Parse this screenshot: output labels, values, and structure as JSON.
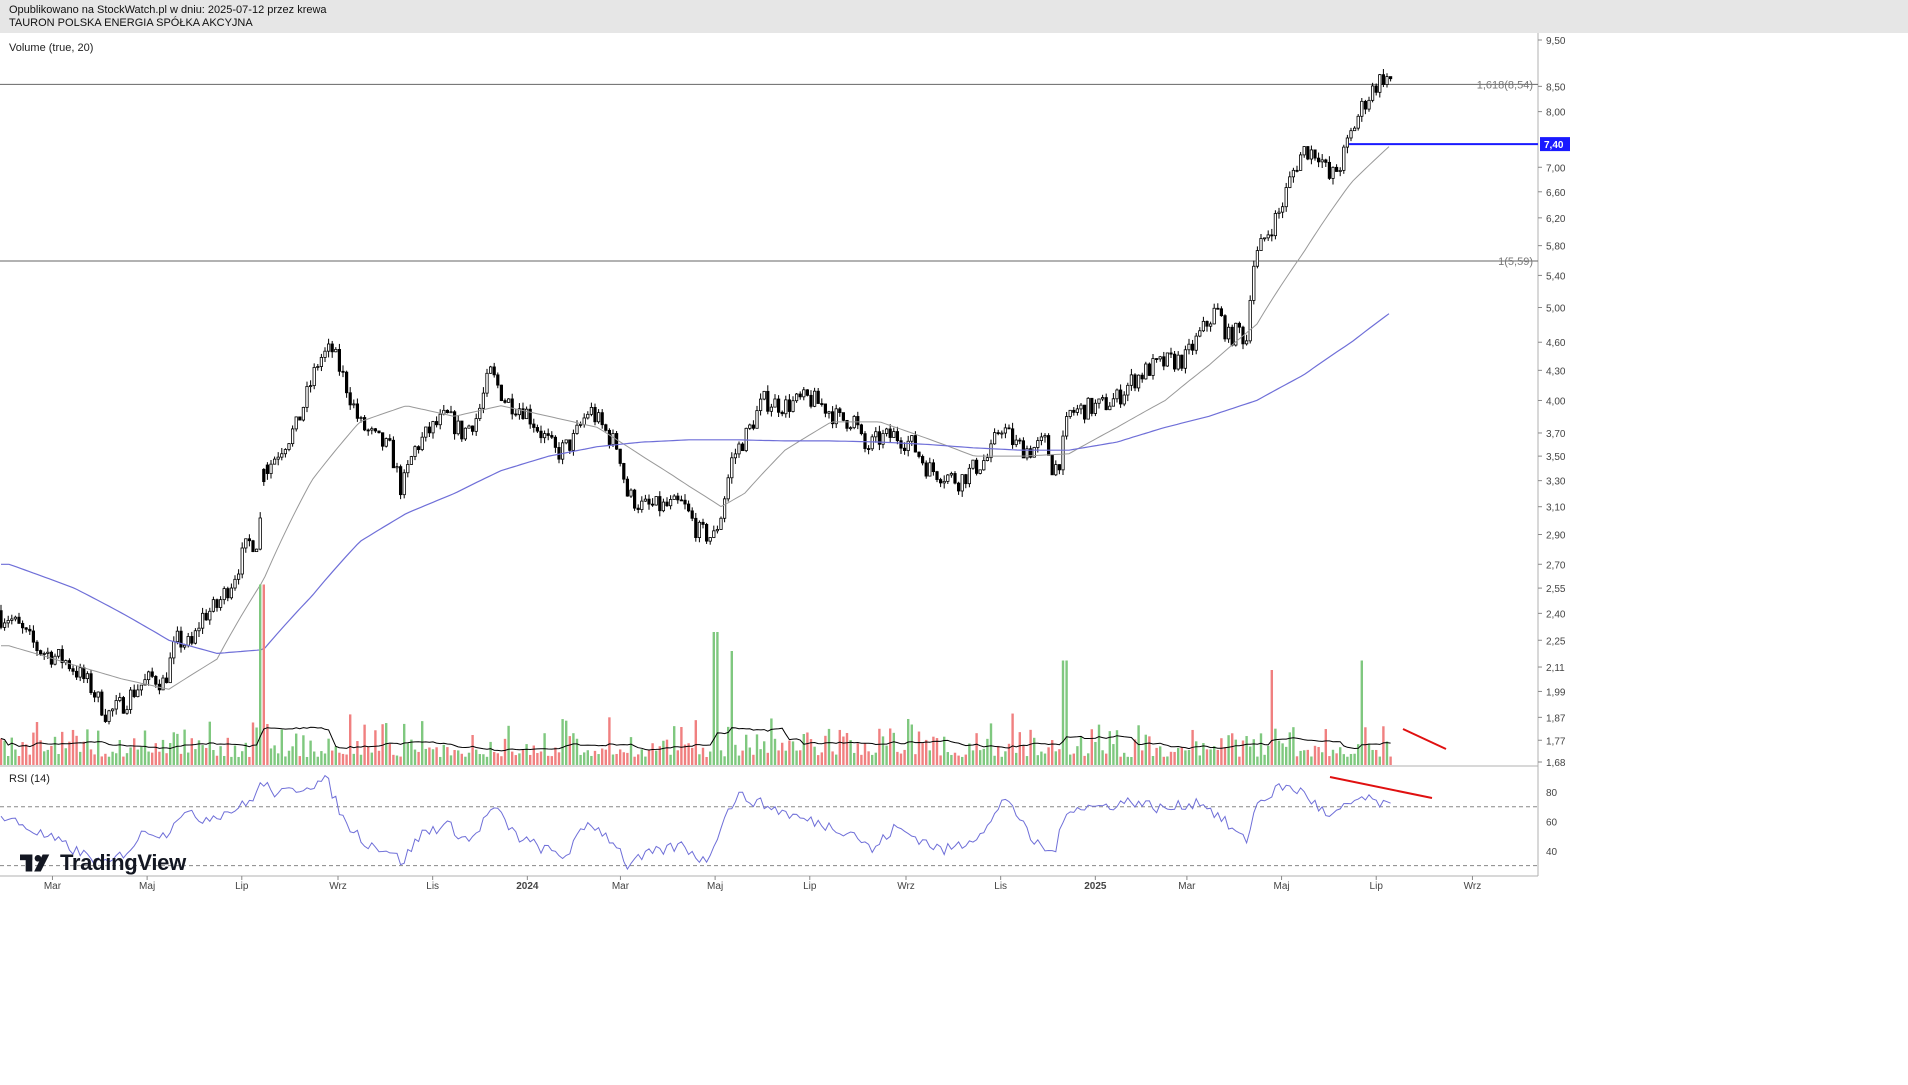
{
  "header": {
    "published": "Opublikowano na StockWatch.pl w dniu: 2025-07-12 przez krewa",
    "instrument": "TAURON POLSKA ENERGIA SPÓŁKA AKCYJNA"
  },
  "volume_label": "Volume (true, 20)",
  "rsi_label": "RSI (14)",
  "logo": {
    "icon": "tradingview-logo-icon",
    "text": "TradingView"
  },
  "chart_data": [
    {
      "type": "line",
      "subtype": "candlestick",
      "scale": "log",
      "ylim": [
        1.68,
        9.5
      ],
      "y_ticks": [
        "9,50",
        "8,50",
        "8,00",
        "7,40",
        "7,00",
        "6,60",
        "6,20",
        "5,80",
        "5,40",
        "5,00",
        "4,60",
        "4,30",
        "4,00",
        "3,70",
        "3,50",
        "3,30",
        "3,10",
        "2,90",
        "2,70",
        "2,55",
        "2,40",
        "2,25",
        "2,11",
        "1,99",
        "1,87",
        "1,77",
        "1,68"
      ],
      "x_ticks": [
        "Mar",
        "Maj",
        "Lip",
        "Wrz",
        "Lis",
        "2024",
        "Mar",
        "Maj",
        "Lip",
        "Wrz",
        "Lis",
        "2025",
        "Mar",
        "Maj",
        "Lip",
        "Wrz"
      ],
      "x_range": [
        "2023-02",
        "2025-10"
      ],
      "price_path": [
        [
          "2023-02-01",
          2.38
        ],
        [
          "2023-02-20",
          2.2
        ],
        [
          "2023-03-10",
          2.14
        ],
        [
          "2023-03-25",
          2.02
        ],
        [
          "2023-04-05",
          1.88
        ],
        [
          "2023-04-15",
          1.93
        ],
        [
          "2023-04-25",
          2.01
        ],
        [
          "2023-05-05",
          2.06
        ],
        [
          "2023-05-12",
          2.03
        ],
        [
          "2023-05-20",
          2.25
        ],
        [
          "2023-05-30",
          2.22
        ],
        [
          "2023-06-05",
          2.38
        ],
        [
          "2023-06-15",
          2.44
        ],
        [
          "2023-06-25",
          2.6
        ],
        [
          "2023-07-05",
          2.84
        ],
        [
          "2023-07-12",
          2.86
        ],
        [
          "2023-07-15",
          3.35
        ],
        [
          "2023-07-25",
          3.55
        ],
        [
          "2023-08-05",
          3.75
        ],
        [
          "2023-08-12",
          4.05
        ],
        [
          "2023-08-20",
          4.42
        ],
        [
          "2023-08-28",
          4.52
        ],
        [
          "2023-09-05",
          4.2
        ],
        [
          "2023-09-15",
          3.78
        ],
        [
          "2023-09-25",
          3.65
        ],
        [
          "2023-10-05",
          3.55
        ],
        [
          "2023-10-12",
          3.22
        ],
        [
          "2023-10-20",
          3.55
        ],
        [
          "2023-10-30",
          3.72
        ],
        [
          "2023-11-10",
          3.85
        ],
        [
          "2023-11-20",
          3.7
        ],
        [
          "2023-11-30",
          3.85
        ],
        [
          "2023-12-08",
          4.28
        ],
        [
          "2023-12-18",
          4.0
        ],
        [
          "2023-12-30",
          3.92
        ],
        [
          "2024-01-10",
          3.7
        ],
        [
          "2024-01-20",
          3.52
        ],
        [
          "2024-01-30",
          3.62
        ],
        [
          "2024-02-10",
          3.92
        ],
        [
          "2024-02-20",
          3.72
        ],
        [
          "2024-02-29",
          3.56
        ],
        [
          "2024-03-05",
          3.2
        ],
        [
          "2024-03-15",
          3.1
        ],
        [
          "2024-03-30",
          3.1
        ],
        [
          "2024-04-10",
          3.12
        ],
        [
          "2024-04-20",
          2.92
        ],
        [
          "2024-04-30",
          2.88
        ],
        [
          "2024-05-05",
          3.05
        ],
        [
          "2024-05-12",
          3.48
        ],
        [
          "2024-05-22",
          3.7
        ],
        [
          "2024-06-01",
          4.0
        ],
        [
          "2024-06-15",
          3.95
        ],
        [
          "2024-06-30",
          4.02
        ],
        [
          "2024-07-10",
          3.95
        ],
        [
          "2024-07-20",
          3.82
        ],
        [
          "2024-07-30",
          3.82
        ],
        [
          "2024-08-05",
          3.55
        ],
        [
          "2024-08-15",
          3.65
        ],
        [
          "2024-08-25",
          3.68
        ],
        [
          "2024-09-05",
          3.6
        ],
        [
          "2024-09-15",
          3.4
        ],
        [
          "2024-09-25",
          3.35
        ],
        [
          "2024-10-05",
          3.3
        ],
        [
          "2024-10-15",
          3.4
        ],
        [
          "2024-10-25",
          3.5
        ],
        [
          "2024-11-01",
          3.78
        ],
        [
          "2024-11-10",
          3.6
        ],
        [
          "2024-11-20",
          3.55
        ],
        [
          "2024-11-30",
          3.62
        ],
        [
          "2024-12-05",
          3.38
        ],
        [
          "2024-12-10",
          3.5
        ],
        [
          "2024-12-15",
          3.88
        ],
        [
          "2024-12-25",
          3.92
        ],
        [
          "2025-01-05",
          3.95
        ],
        [
          "2025-01-15",
          4.02
        ],
        [
          "2025-01-25",
          4.2
        ],
        [
          "2025-02-05",
          4.32
        ],
        [
          "2025-02-15",
          4.38
        ],
        [
          "2025-02-28",
          4.42
        ],
        [
          "2025-03-10",
          4.7
        ],
        [
          "2025-03-20",
          4.98
        ],
        [
          "2025-03-28",
          4.65
        ],
        [
          "2025-04-05",
          4.75
        ],
        [
          "2025-04-08",
          4.52
        ],
        [
          "2025-04-12",
          5.5
        ],
        [
          "2025-04-20",
          5.9
        ],
        [
          "2025-04-30",
          6.3
        ],
        [
          "2025-05-08",
          6.9
        ],
        [
          "2025-05-15",
          7.3
        ],
        [
          "2025-05-25",
          7.25
        ],
        [
          "2025-06-01",
          6.8
        ],
        [
          "2025-06-08",
          7.05
        ],
        [
          "2025-06-15",
          7.6
        ],
        [
          "2025-06-22",
          8.1
        ],
        [
          "2025-06-30",
          8.5
        ],
        [
          "2025-07-05",
          8.7
        ],
        [
          "2025-07-11",
          8.62
        ]
      ],
      "sma_short": [
        [
          "2023-02-01",
          2.22
        ],
        [
          "2023-03-15",
          2.12
        ],
        [
          "2023-04-15",
          2.05
        ],
        [
          "2023-05-15",
          2.0
        ],
        [
          "2023-06-15",
          2.15
        ],
        [
          "2023-07-15",
          2.6
        ],
        [
          "2023-08-15",
          3.3
        ],
        [
          "2023-09-15",
          3.8
        ],
        [
          "2023-10-15",
          3.95
        ],
        [
          "2023-11-15",
          3.85
        ],
        [
          "2023-12-15",
          3.95
        ],
        [
          "2024-01-15",
          3.85
        ],
        [
          "2024-02-15",
          3.75
        ],
        [
          "2024-03-15",
          3.5
        ],
        [
          "2024-04-15",
          3.25
        ],
        [
          "2024-05-05",
          3.1
        ],
        [
          "2024-05-20",
          3.2
        ],
        [
          "2024-06-15",
          3.55
        ],
        [
          "2024-07-15",
          3.8
        ],
        [
          "2024-08-15",
          3.8
        ],
        [
          "2024-09-15",
          3.65
        ],
        [
          "2024-10-15",
          3.5
        ],
        [
          "2024-11-15",
          3.5
        ],
        [
          "2024-12-15",
          3.52
        ],
        [
          "2025-01-15",
          3.75
        ],
        [
          "2025-02-15",
          4.0
        ],
        [
          "2025-03-15",
          4.35
        ],
        [
          "2025-04-15",
          4.8
        ],
        [
          "2025-05-15",
          5.7
        ],
        [
          "2025-06-15",
          6.75
        ],
        [
          "2025-07-11",
          7.4
        ]
      ],
      "sma_long": [
        [
          "2023-02-01",
          2.7
        ],
        [
          "2023-03-15",
          2.55
        ],
        [
          "2023-04-15",
          2.4
        ],
        [
          "2023-05-15",
          2.25
        ],
        [
          "2023-06-15",
          2.18
        ],
        [
          "2023-07-15",
          2.2
        ],
        [
          "2023-08-15",
          2.5
        ],
        [
          "2023-09-15",
          2.85
        ],
        [
          "2023-10-15",
          3.05
        ],
        [
          "2023-11-15",
          3.2
        ],
        [
          "2023-12-15",
          3.38
        ],
        [
          "2024-01-15",
          3.5
        ],
        [
          "2024-02-15",
          3.58
        ],
        [
          "2024-03-15",
          3.62
        ],
        [
          "2024-04-15",
          3.64
        ],
        [
          "2024-05-15",
          3.64
        ],
        [
          "2024-06-15",
          3.63
        ],
        [
          "2024-07-15",
          3.63
        ],
        [
          "2024-08-15",
          3.62
        ],
        [
          "2024-09-15",
          3.6
        ],
        [
          "2024-10-15",
          3.57
        ],
        [
          "2024-11-15",
          3.55
        ],
        [
          "2024-12-15",
          3.55
        ],
        [
          "2025-01-15",
          3.62
        ],
        [
          "2025-02-15",
          3.75
        ],
        [
          "2025-03-15",
          3.85
        ],
        [
          "2025-04-15",
          4.0
        ],
        [
          "2025-05-15",
          4.25
        ],
        [
          "2025-06-15",
          4.6
        ],
        [
          "2025-07-11",
          4.95
        ]
      ],
      "levels": [
        {
          "value": 8.54,
          "label": "1,618(8,54)",
          "color": "#666666"
        },
        {
          "value": 5.59,
          "label": "1(5,59)",
          "color": "#666666"
        },
        {
          "value": 7.4,
          "label": "7,40",
          "color": "#1a1aff"
        }
      ],
      "colors": {
        "up": "#22ab94",
        "candle": "#000000",
        "sma_short": "#999999",
        "sma_long": "#6f6fd8",
        "vol_up": "#7fc87f",
        "vol_down": "#f08080",
        "vol_ma": "#000000",
        "divergence": "#e01010"
      },
      "volume_spikes": [
        [
          "2023-07-14",
          0.95
        ],
        [
          "2024-05-01",
          0.7
        ],
        [
          "2024-05-12",
          0.6
        ],
        [
          "2025-06-22",
          0.55
        ],
        [
          "2024-12-12",
          0.55
        ],
        [
          "2025-04-25",
          0.5
        ]
      ]
    },
    {
      "type": "line",
      "name": "RSI (14)",
      "y_ticks": [
        "80",
        "60",
        "40"
      ],
      "bands": [
        70,
        30
      ],
      "ylim": [
        25,
        95
      ],
      "values": [
        [
          "2023-02-01",
          62
        ],
        [
          "2023-02-20",
          52
        ],
        [
          "2023-03-05",
          46
        ],
        [
          "2023-03-20",
          38
        ],
        [
          "2023-04-05",
          30
        ],
        [
          "2023-04-20",
          42
        ],
        [
          "2023-05-01",
          55
        ],
        [
          "2023-05-12",
          50
        ],
        [
          "2023-05-22",
          66
        ],
        [
          "2023-06-05",
          62
        ],
        [
          "2023-06-20",
          66
        ],
        [
          "2023-07-05",
          72
        ],
        [
          "2023-07-14",
          86
        ],
        [
          "2023-07-25",
          78
        ],
        [
          "2023-08-10",
          84
        ],
        [
          "2023-08-25",
          88
        ],
        [
          "2023-09-05",
          60
        ],
        [
          "2023-09-20",
          45
        ],
        [
          "2023-10-05",
          40
        ],
        [
          "2023-10-12",
          32
        ],
        [
          "2023-10-25",
          52
        ],
        [
          "2023-11-10",
          58
        ],
        [
          "2023-11-25",
          46
        ],
        [
          "2023-12-10",
          70
        ],
        [
          "2023-12-25",
          50
        ],
        [
          "2024-01-10",
          42
        ],
        [
          "2024-01-25",
          36
        ],
        [
          "2024-02-10",
          60
        ],
        [
          "2024-02-28",
          44
        ],
        [
          "2024-03-05",
          30
        ],
        [
          "2024-03-20",
          38
        ],
        [
          "2024-04-10",
          44
        ],
        [
          "2024-04-25",
          32
        ],
        [
          "2024-05-05",
          58
        ],
        [
          "2024-05-15",
          78
        ],
        [
          "2024-06-05",
          70
        ],
        [
          "2024-06-25",
          62
        ],
        [
          "2024-07-10",
          58
        ],
        [
          "2024-07-30",
          52
        ],
        [
          "2024-08-10",
          40
        ],
        [
          "2024-08-25",
          56
        ],
        [
          "2024-09-10",
          48
        ],
        [
          "2024-09-25",
          40
        ],
        [
          "2024-10-10",
          46
        ],
        [
          "2024-10-25",
          58
        ],
        [
          "2024-11-05",
          78
        ],
        [
          "2024-11-20",
          48
        ],
        [
          "2024-12-05",
          38
        ],
        [
          "2024-12-15",
          70
        ],
        [
          "2025-01-05",
          70
        ],
        [
          "2025-01-25",
          74
        ],
        [
          "2025-02-15",
          68
        ],
        [
          "2025-03-10",
          74
        ],
        [
          "2025-03-25",
          60
        ],
        [
          "2025-04-08",
          46
        ],
        [
          "2025-04-15",
          72
        ],
        [
          "2025-05-01",
          84
        ],
        [
          "2025-05-15",
          80
        ],
        [
          "2025-06-01",
          62
        ],
        [
          "2025-06-20",
          76
        ],
        [
          "2025-07-05",
          72
        ],
        [
          "2025-07-11",
          68
        ]
      ]
    }
  ]
}
